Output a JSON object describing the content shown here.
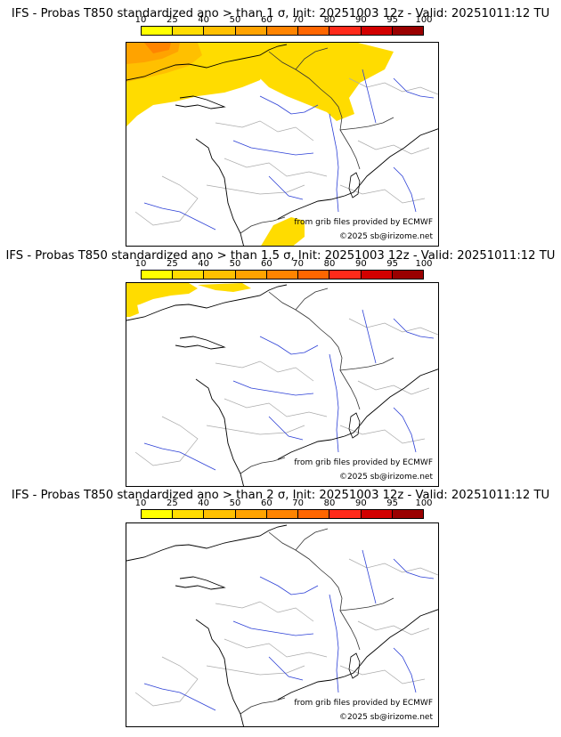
{
  "colorbar": {
    "ticks": [
      "10",
      "25",
      "40",
      "50",
      "60",
      "70",
      "80",
      "90",
      "95",
      "100"
    ],
    "colors": [
      "#ffff00",
      "#ffdc00",
      "#ffc000",
      "#ffa300",
      "#ff8400",
      "#ff6600",
      "#ff2a1a",
      "#d20000",
      "#9a0000",
      "#620000"
    ]
  },
  "panels": [
    {
      "title": "IFS - Probas T850  standardized ano > than 1 σ, Init: 20251003 12z - Valid: 20251011:12 TU",
      "credit_source": "from grib files provided by ECMWF",
      "credit_copyright": "©2025 sb@irizome.net",
      "probability_shading": "high"
    },
    {
      "title": "IFS - Probas T850  standardized ano > than 1.5 σ, Init: 20251003 12z - Valid: 20251011:12 TU",
      "credit_source": "from grib files provided by ECMWF",
      "credit_copyright": "©2025 sb@irizome.net",
      "probability_shading": "low"
    },
    {
      "title": "IFS - Probas T850  standardized ano > than 2 σ, Init: 20251003 12z - Valid: 20251011:12 TU",
      "credit_source": "from grib files provided by ECMWF",
      "credit_copyright": "©2025 sb@irizome.net",
      "probability_shading": "none"
    }
  ]
}
